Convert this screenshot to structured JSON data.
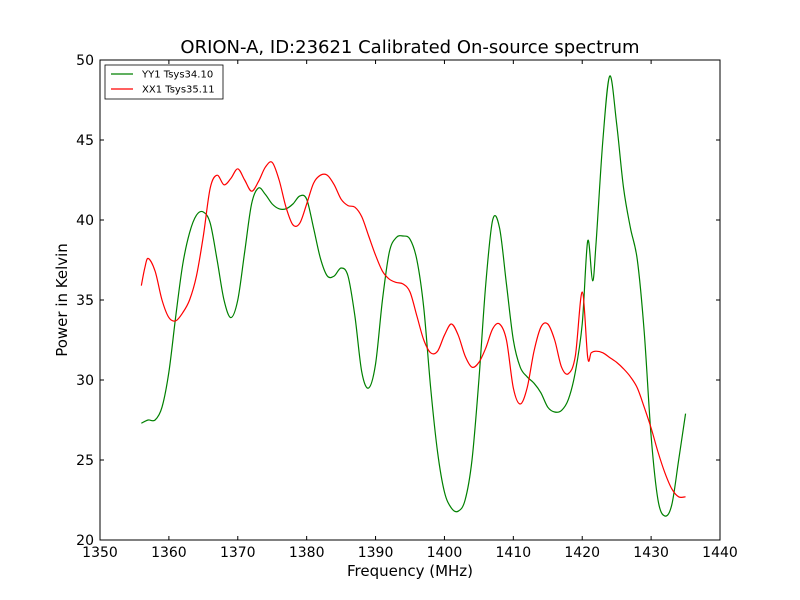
{
  "chart_data": {
    "type": "line",
    "title": "ORION-A, ID:23621 Calibrated On-source spectrum",
    "xlabel": "Frequency (MHz)",
    "ylabel": "Power in Kelvin",
    "xlim": [
      1350,
      1440
    ],
    "ylim": [
      20,
      50
    ],
    "xticks": [
      1350,
      1360,
      1370,
      1380,
      1390,
      1400,
      1410,
      1420,
      1430,
      1440
    ],
    "yticks": [
      20,
      25,
      30,
      35,
      40,
      45,
      50
    ],
    "grid": false,
    "legend_position": "top-left",
    "series": [
      {
        "name": "YY1 Tsys34.10",
        "color": "#008000",
        "x": [
          1356,
          1357,
          1358,
          1359,
          1360,
          1361,
          1362,
          1363,
          1364,
          1365,
          1366,
          1367,
          1368,
          1369,
          1370,
          1371,
          1372,
          1373,
          1374,
          1375,
          1376,
          1377,
          1378,
          1379,
          1380,
          1381,
          1382,
          1383,
          1384,
          1385,
          1386,
          1387,
          1388,
          1389,
          1390,
          1391,
          1392,
          1393,
          1394,
          1395,
          1396,
          1397,
          1398,
          1399,
          1400,
          1401,
          1402,
          1403,
          1404,
          1405,
          1406,
          1407,
          1408,
          1409,
          1410,
          1411,
          1412,
          1413,
          1414,
          1415,
          1416,
          1417,
          1418,
          1419,
          1420,
          1420.8,
          1421.5,
          1422,
          1423,
          1424,
          1425,
          1426,
          1427,
          1428,
          1429,
          1430,
          1431,
          1432,
          1433,
          1434,
          1435
        ],
        "y": [
          27.3,
          27.5,
          27.5,
          28.3,
          30.5,
          34,
          37.2,
          39.2,
          40.3,
          40.5,
          39.8,
          37.5,
          35,
          33.9,
          35,
          38,
          41,
          42,
          41.6,
          41,
          40.7,
          40.7,
          41,
          41.5,
          41.3,
          39.5,
          37.6,
          36.5,
          36.5,
          37,
          36.5,
          34,
          30.5,
          29.5,
          31,
          35,
          38,
          38.9,
          39,
          38.8,
          37.5,
          34.5,
          29.5,
          25.5,
          23,
          22,
          21.8,
          22.5,
          25,
          30,
          36,
          40,
          39.5,
          36,
          32.5,
          30.8,
          30.2,
          29.8,
          29.2,
          28.3,
          28,
          28.1,
          28.8,
          30.5,
          33.5,
          38.7,
          36.2,
          38.5,
          45,
          49,
          46,
          42,
          39.5,
          37.5,
          33,
          26.5,
          22.5,
          21.5,
          22.2,
          25,
          27.9
        ]
      },
      {
        "name": "XX1 Tsys35.11",
        "color": "#ff0000",
        "x": [
          1356,
          1356.5,
          1357,
          1358,
          1359,
          1360,
          1361,
          1362,
          1363,
          1364,
          1365,
          1366,
          1367,
          1368,
          1369,
          1370,
          1371,
          1372,
          1373,
          1374,
          1375,
          1376,
          1377,
          1378,
          1379,
          1380,
          1381,
          1382,
          1383,
          1384,
          1385,
          1386,
          1387,
          1388,
          1389,
          1390,
          1391,
          1392,
          1393,
          1394,
          1395,
          1396,
          1397,
          1398,
          1399,
          1400,
          1401,
          1402,
          1403,
          1404,
          1405,
          1406,
          1407,
          1408,
          1409,
          1410,
          1411,
          1412,
          1413,
          1414,
          1415,
          1416,
          1417,
          1418,
          1419,
          1420,
          1420.8,
          1421.3,
          1422,
          1423,
          1424,
          1425,
          1426,
          1427,
          1428,
          1429,
          1430,
          1431,
          1432,
          1433,
          1434,
          1435
        ],
        "y": [
          35.9,
          37,
          37.6,
          36.8,
          35,
          33.9,
          33.7,
          34.2,
          35,
          36.5,
          39,
          42,
          42.8,
          42.2,
          42.6,
          43.2,
          42.5,
          41.8,
          42.4,
          43.3,
          43.6,
          42.5,
          40.8,
          39.7,
          39.8,
          41,
          42.3,
          42.8,
          42.8,
          42.2,
          41.3,
          40.9,
          40.8,
          40.2,
          39,
          37.8,
          36.8,
          36.3,
          36.1,
          36,
          35.5,
          34,
          32.5,
          31.7,
          31.8,
          32.8,
          33.5,
          32.8,
          31.5,
          30.8,
          31.1,
          32,
          33.2,
          33.5,
          32.5,
          29.5,
          28.5,
          29.5,
          31.8,
          33.3,
          33.5,
          32.5,
          30.8,
          30.4,
          31.5,
          35.5,
          31.4,
          31.7,
          31.8,
          31.7,
          31.4,
          31.1,
          30.7,
          30.2,
          29.5,
          28.3,
          27,
          25.5,
          24.2,
          23.2,
          22.7,
          22.7
        ]
      }
    ]
  }
}
